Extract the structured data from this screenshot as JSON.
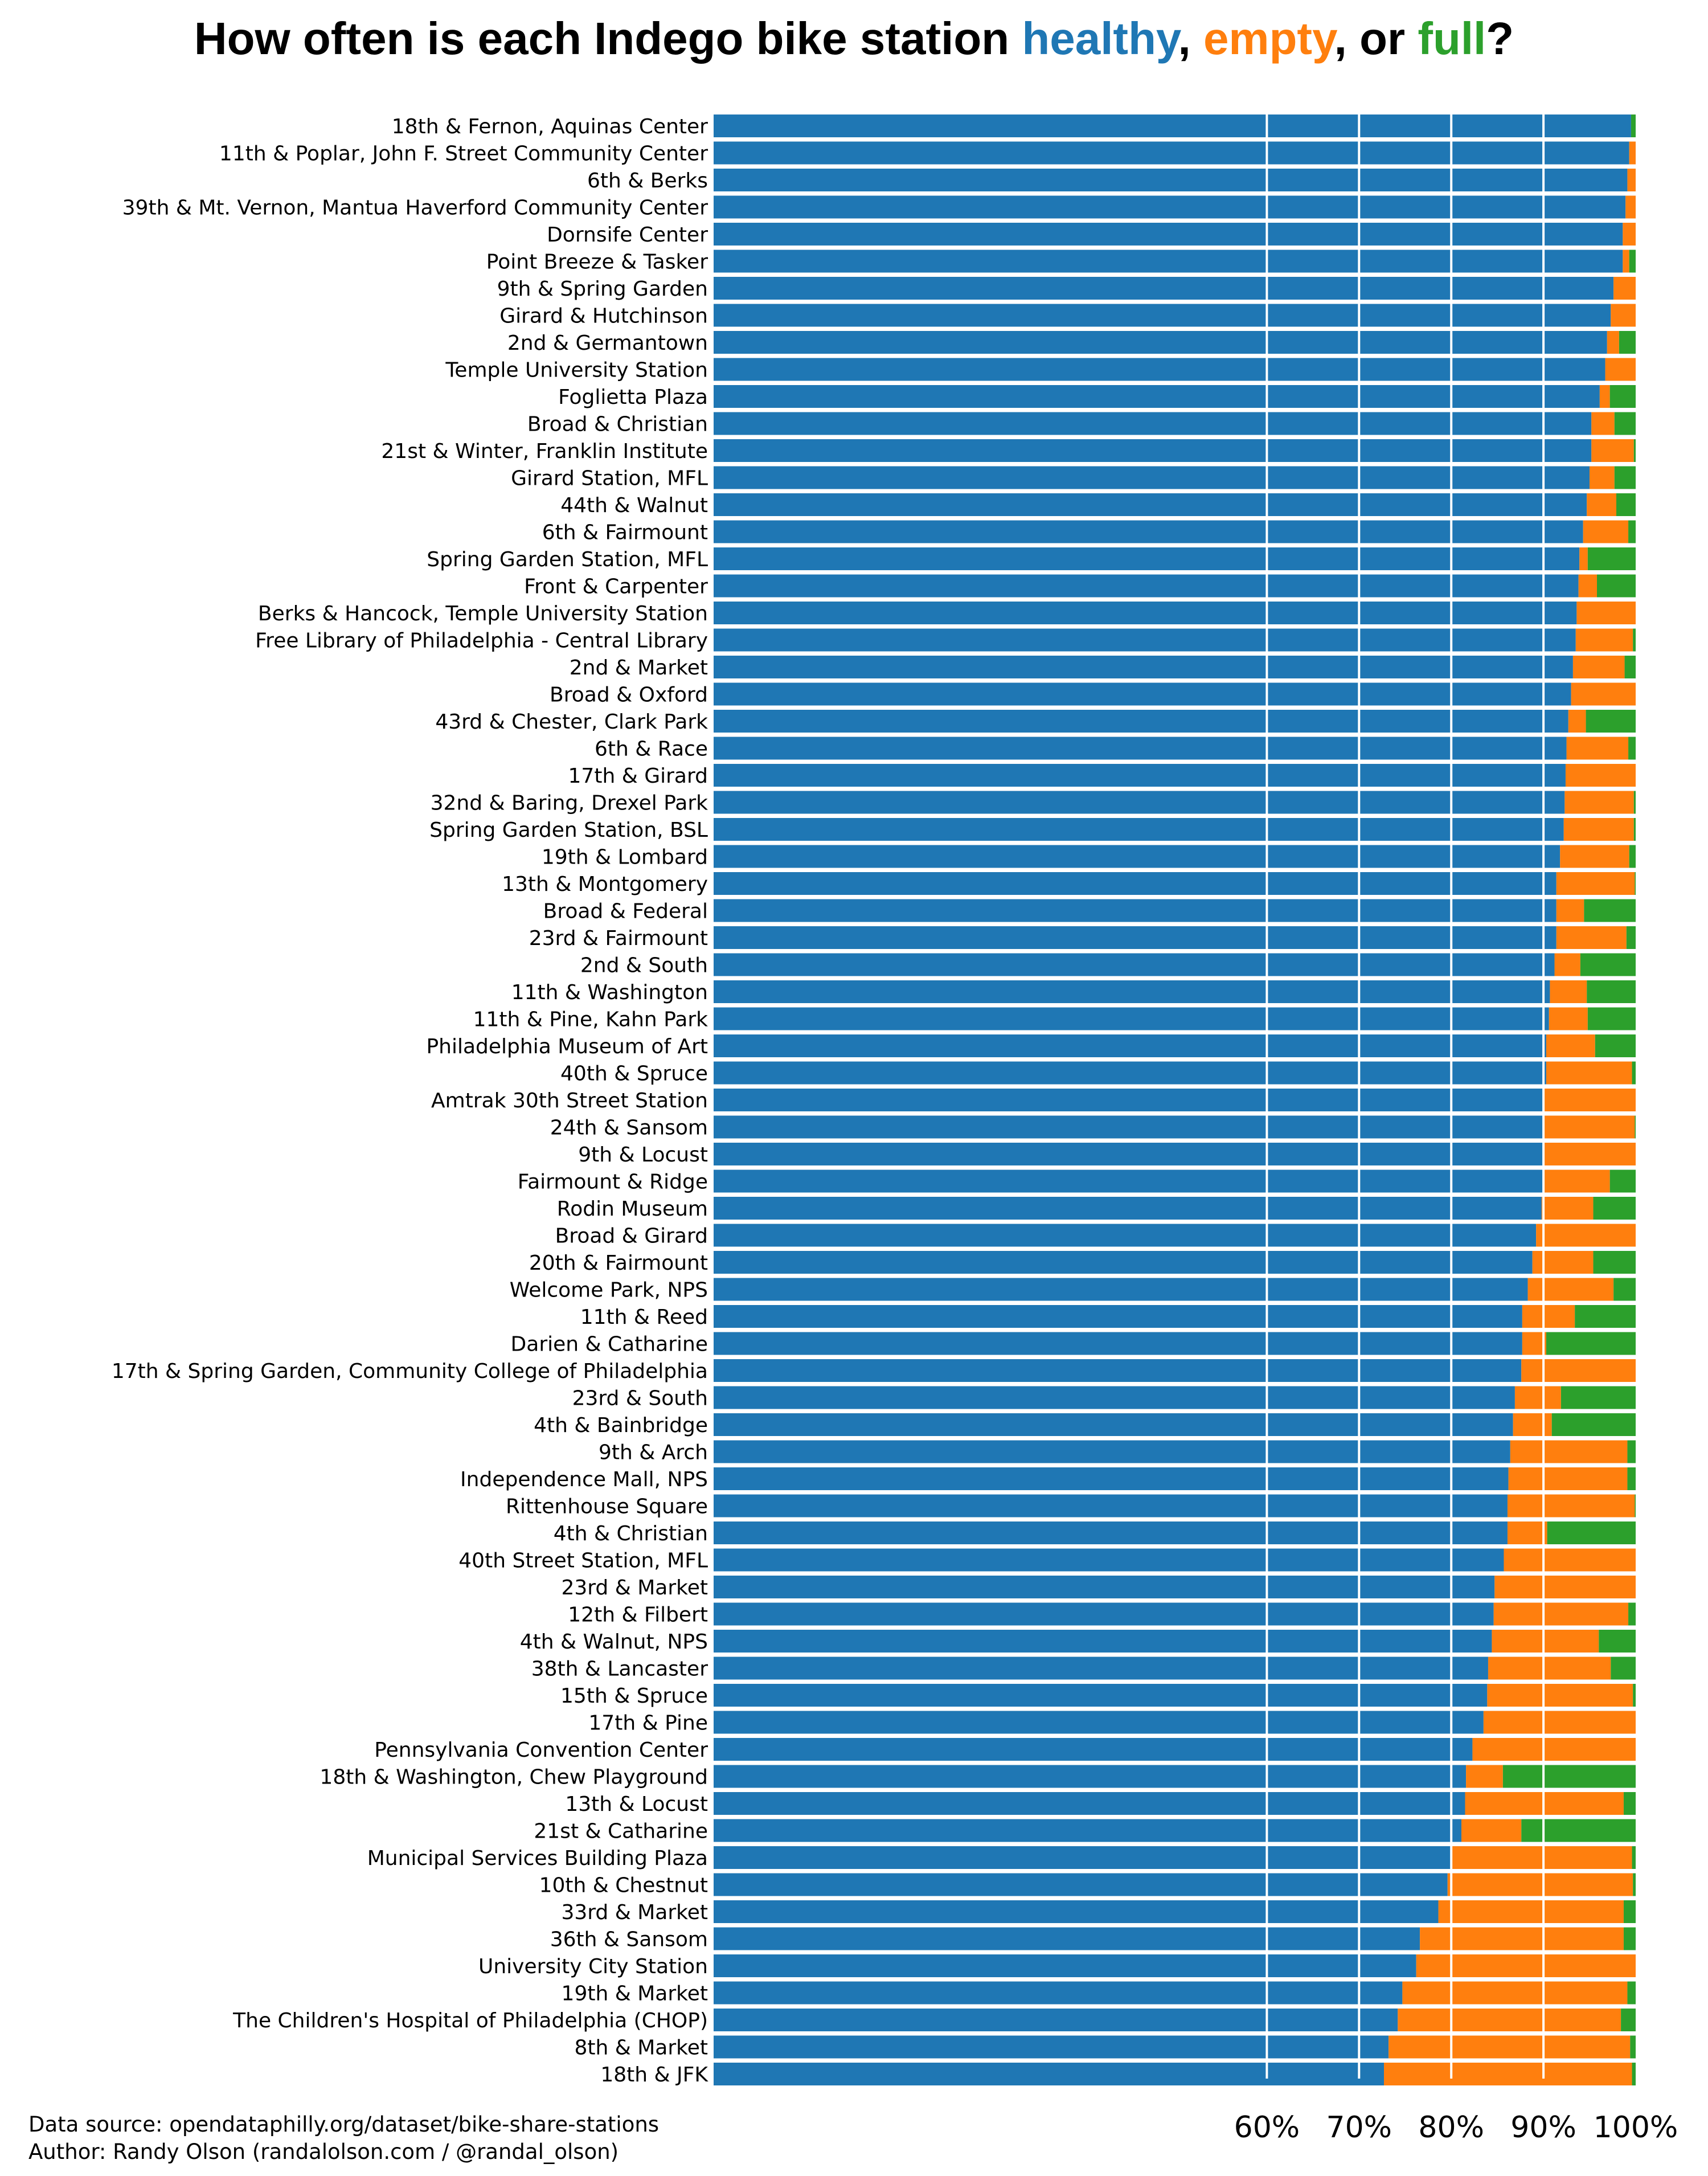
{
  "title": {
    "prefix": "How often is each Indego bike station ",
    "healthy_word": "healthy",
    "sep1": ", ",
    "empty_word": "empty",
    "sep2": ", or ",
    "full_word": "full",
    "suffix": "?"
  },
  "footer": {
    "source": "Data source: opendataphilly.org/dataset/bike-share-stations",
    "author": "Author: Randy Olson (randalolson.com / @randal_olson)"
  },
  "colors": {
    "healthy": "#1f77b4",
    "empty": "#ff7f0e",
    "full": "#2ca02c"
  },
  "chart_data": {
    "type": "bar",
    "orientation": "horizontal",
    "stacked": true,
    "title": "How often is each Indego bike station healthy, empty, or full?",
    "xlabel": "",
    "ylabel": "",
    "xlim": [
      0,
      100
    ],
    "xticks": [
      60,
      70,
      80,
      90,
      100
    ],
    "xtick_labels": [
      "60%",
      "70%",
      "80%",
      "90%",
      "100%"
    ],
    "grid": "vertical white lines at x ticks",
    "legend": "none (colors encoded in title words)",
    "categories": [
      "18th & Fernon, Aquinas Center",
      "11th & Poplar, John F. Street Community Center",
      "6th & Berks",
      "39th & Mt. Vernon, Mantua Haverford Community Center",
      "Dornsife Center",
      "Point Breeze & Tasker",
      "9th & Spring Garden",
      "Girard & Hutchinson",
      "2nd & Germantown",
      "Temple University Station",
      "Foglietta Plaza",
      "Broad & Christian",
      "21st & Winter, Franklin Institute",
      "Girard Station, MFL",
      "44th & Walnut",
      "6th & Fairmount",
      "Spring Garden Station, MFL",
      "Front & Carpenter",
      "Berks & Hancock, Temple University Station",
      "Free Library of Philadelphia - Central Library",
      "2nd & Market",
      "Broad & Oxford",
      "43rd & Chester, Clark Park",
      "6th & Race",
      "17th & Girard",
      "32nd & Baring, Drexel Park",
      "Spring Garden Station, BSL",
      "19th & Lombard",
      "13th & Montgomery",
      "Broad & Federal",
      "23rd & Fairmount",
      "2nd & South",
      "11th & Washington",
      "11th & Pine, Kahn Park",
      "Philadelphia Museum of Art",
      "40th & Spruce",
      "Amtrak 30th Street Station",
      "24th & Sansom",
      "9th & Locust",
      "Fairmount & Ridge",
      "Rodin Museum",
      "Broad & Girard",
      "20th & Fairmount",
      "Welcome Park, NPS",
      "11th & Reed",
      "Darien & Catharine",
      "17th & Spring Garden, Community College of Philadelphia",
      "23rd & South",
      "4th & Bainbridge",
      "9th & Arch",
      "Independence Mall, NPS",
      "Rittenhouse Square",
      "4th & Christian",
      "40th Street Station, MFL",
      "23rd & Market",
      "12th & Filbert",
      "4th & Walnut, NPS",
      "38th & Lancaster",
      "15th & Spruce",
      "17th & Pine",
      "Pennsylvania Convention Center",
      "18th & Washington, Chew Playground",
      "13th & Locust",
      "21st & Catharine",
      "Municipal Services Building Plaza",
      "10th & Chestnut",
      "33rd & Market",
      "36th & Sansom",
      "University City Station",
      "19th & Market",
      "The Children's Hospital of Philadelphia (CHOP)",
      "8th & Market",
      "18th & JFK"
    ],
    "series": [
      {
        "name": "healthy",
        "values": [
          99.5,
          99.3,
          99.1,
          98.9,
          98.6,
          98.6,
          97.6,
          97.3,
          96.9,
          96.7,
          96.1,
          95.2,
          95.2,
          95.0,
          94.7,
          94.3,
          93.9,
          93.8,
          93.6,
          93.5,
          93.2,
          93.0,
          92.7,
          92.5,
          92.4,
          92.3,
          92.2,
          91.8,
          91.4,
          91.4,
          91.4,
          91.2,
          90.7,
          90.6,
          90.3,
          90.3,
          90.1,
          90.1,
          90.0,
          90.0,
          89.8,
          89.2,
          88.8,
          88.3,
          87.7,
          87.7,
          87.6,
          86.9,
          86.7,
          86.4,
          86.2,
          86.1,
          86.1,
          85.7,
          84.7,
          84.6,
          84.4,
          84.0,
          83.9,
          83.5,
          82.3,
          81.6,
          81.5,
          81.1,
          79.9,
          79.6,
          78.6,
          76.6,
          76.2,
          74.7,
          74.2,
          73.2,
          72.7
        ]
      },
      {
        "name": "empty",
        "values": [
          0.0,
          0.7,
          0.9,
          1.1,
          1.4,
          0.7,
          2.4,
          2.7,
          1.3,
          3.3,
          1.1,
          2.5,
          4.6,
          2.7,
          3.2,
          4.9,
          0.9,
          2.0,
          6.4,
          6.2,
          5.6,
          7.0,
          1.9,
          6.7,
          7.6,
          7.5,
          7.6,
          7.5,
          8.5,
          3.0,
          7.6,
          2.8,
          4.0,
          4.2,
          5.3,
          9.3,
          9.9,
          9.8,
          10.0,
          7.2,
          5.6,
          10.8,
          6.6,
          9.3,
          5.7,
          2.6,
          12.4,
          5.0,
          4.2,
          12.7,
          12.9,
          13.8,
          4.3,
          14.3,
          15.3,
          14.6,
          11.6,
          13.3,
          15.8,
          16.5,
          17.7,
          4.0,
          17.2,
          6.5,
          19.7,
          20.1,
          20.1,
          22.1,
          23.8,
          24.4,
          24.2,
          26.2,
          26.9
        ]
      },
      {
        "name": "full",
        "values": [
          0.5,
          0.0,
          0.0,
          0.0,
          0.0,
          0.7,
          0.0,
          0.0,
          1.8,
          0.0,
          2.8,
          2.3,
          0.2,
          2.3,
          2.1,
          0.8,
          5.2,
          4.2,
          0.0,
          0.3,
          1.2,
          0.0,
          5.4,
          0.8,
          0.0,
          0.2,
          0.2,
          0.7,
          0.1,
          5.6,
          1.0,
          6.0,
          5.3,
          5.2,
          4.4,
          0.4,
          0.0,
          0.1,
          0.0,
          2.8,
          4.6,
          0.0,
          4.6,
          2.4,
          6.6,
          9.7,
          0.0,
          8.1,
          9.1,
          0.9,
          0.9,
          0.1,
          9.6,
          0.0,
          0.0,
          0.8,
          4.0,
          2.7,
          0.3,
          0.0,
          0.0,
          14.4,
          1.3,
          12.4,
          0.4,
          0.3,
          1.3,
          1.3,
          0.0,
          0.9,
          1.6,
          0.6,
          0.4
        ]
      }
    ]
  }
}
